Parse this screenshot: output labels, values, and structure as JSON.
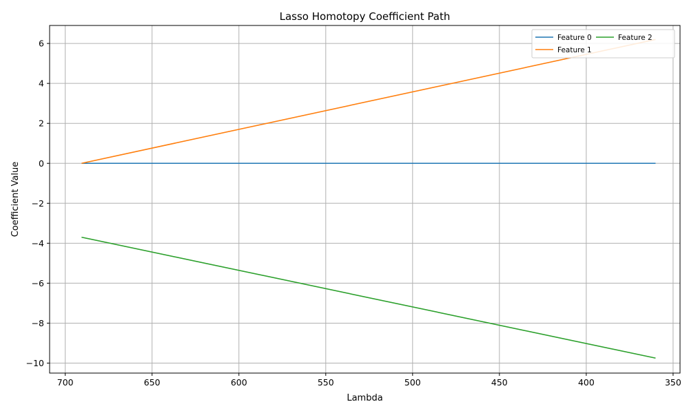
{
  "chart_data": {
    "type": "line",
    "title": "Lasso Homotopy Coefficient Path",
    "xlabel": "Lambda",
    "ylabel": "Coefficient Value",
    "x_inverted": true,
    "xlim": [
      709,
      346
    ],
    "ylim": [
      -10.5,
      6.9
    ],
    "x_ticks": [
      700,
      650,
      600,
      550,
      500,
      450,
      400,
      350
    ],
    "y_ticks": [
      6,
      4,
      2,
      0,
      -2,
      -4,
      -6,
      -8,
      -10
    ],
    "y_tick_labels": [
      "6",
      "4",
      "2",
      "0",
      "−2",
      "−4",
      "−6",
      "−8",
      "−10"
    ],
    "grid": true,
    "legend": {
      "position": "top-right",
      "columns": 2
    },
    "series": [
      {
        "name": "Feature 0",
        "color": "#1f77b4",
        "x": [
          690.6,
          360.1
        ],
        "y": [
          0,
          0
        ]
      },
      {
        "name": "Feature 1",
        "color": "#ff7f0e",
        "x": [
          690.6,
          360.1
        ],
        "y": [
          0,
          6.2
        ]
      },
      {
        "name": "Feature 2",
        "color": "#2ca02c",
        "x": [
          690.6,
          360.1
        ],
        "y": [
          -3.7,
          -9.75
        ]
      }
    ]
  }
}
